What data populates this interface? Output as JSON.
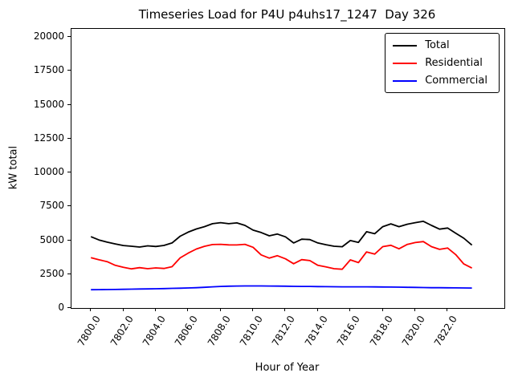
{
  "chart_data": {
    "type": "line",
    "title": "Timeseries Load for P4U p4uhs17_1247  Day 326",
    "xlabel": "Hour of Year",
    "ylabel": "kW total",
    "xlim": [
      7798.8,
      7825.5
    ],
    "ylim": [
      0,
      20600
    ],
    "grid": false,
    "legend_position": "upper right",
    "x_ticks": [
      7800,
      7802,
      7804,
      7806,
      7808,
      7810,
      7812,
      7814,
      7816,
      7818,
      7820,
      7822
    ],
    "x_tick_labels": [
      "7800.0",
      "7802.0",
      "7804.0",
      "7806.0",
      "7808.0",
      "7810.0",
      "7812.0",
      "7814.0",
      "7816.0",
      "7818.0",
      "7820.0",
      "7822.0"
    ],
    "y_ticks": [
      0,
      2500,
      5000,
      7500,
      10000,
      12500,
      15000,
      17500,
      20000
    ],
    "y_tick_labels": [
      "0",
      "2500",
      "5000",
      "7500",
      "10000",
      "12500",
      "15000",
      "17500",
      "20000"
    ],
    "x": [
      7800.0,
      7800.5,
      7801.0,
      7801.5,
      7802.0,
      7802.5,
      7803.0,
      7803.5,
      7804.0,
      7804.5,
      7805.0,
      7805.5,
      7806.0,
      7806.5,
      7807.0,
      7807.5,
      7808.0,
      7808.5,
      7809.0,
      7809.5,
      7810.0,
      7810.5,
      7811.0,
      7811.5,
      7812.0,
      7812.5,
      7813.0,
      7813.5,
      7814.0,
      7814.5,
      7815.0,
      7815.5,
      7816.0,
      7816.5,
      7817.0,
      7817.5,
      7818.0,
      7818.5,
      7819.0,
      7819.5,
      7820.0,
      7820.5,
      7821.0,
      7821.5,
      7822.0,
      7822.5,
      7823.0,
      7823.5
    ],
    "series": [
      {
        "name": "Total",
        "color": "#000000",
        "values": [
          5260,
          5020,
          4860,
          4730,
          4610,
          4560,
          4500,
          4590,
          4540,
          4620,
          4800,
          5300,
          5600,
          5830,
          6000,
          6220,
          6300,
          6220,
          6280,
          6100,
          5750,
          5570,
          5330,
          5460,
          5250,
          4800,
          5080,
          5050,
          4800,
          4670,
          4560,
          4520,
          4980,
          4840,
          5630,
          5480,
          6000,
          6210,
          6000,
          6180,
          6300,
          6400,
          6100,
          5820,
          5900,
          5520,
          5150,
          4640
        ]
      },
      {
        "name": "Residential",
        "color": "#ff0000",
        "values": [
          3720,
          3560,
          3420,
          3150,
          3000,
          2890,
          2980,
          2900,
          2960,
          2920,
          3050,
          3700,
          4050,
          4350,
          4550,
          4680,
          4700,
          4660,
          4650,
          4700,
          4480,
          3920,
          3680,
          3860,
          3630,
          3270,
          3570,
          3500,
          3150,
          3030,
          2900,
          2860,
          3550,
          3350,
          4140,
          3980,
          4530,
          4630,
          4370,
          4690,
          4830,
          4900,
          4530,
          4330,
          4430,
          3940,
          3250,
          2950
        ]
      },
      {
        "name": "Commercial",
        "color": "#0000ff",
        "values": [
          1350,
          1355,
          1360,
          1370,
          1380,
          1390,
          1400,
          1410,
          1420,
          1435,
          1450,
          1465,
          1480,
          1500,
          1530,
          1560,
          1590,
          1610,
          1620,
          1630,
          1630,
          1625,
          1620,
          1615,
          1610,
          1600,
          1595,
          1590,
          1580,
          1575,
          1570,
          1565,
          1560,
          1560,
          1560,
          1555,
          1550,
          1545,
          1540,
          1530,
          1520,
          1510,
          1500,
          1495,
          1490,
          1485,
          1480,
          1475
        ]
      }
    ]
  }
}
